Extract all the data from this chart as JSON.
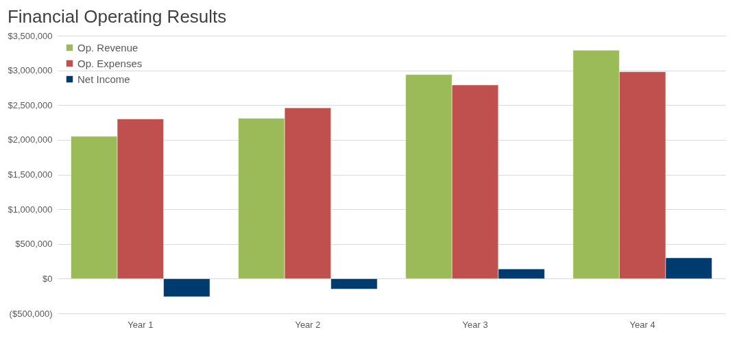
{
  "chart_data": {
    "type": "bar",
    "title": "Financial Operating Results",
    "categories": [
      "Year 1",
      "Year 2",
      "Year 3",
      "Year 4"
    ],
    "series": [
      {
        "name": "Op. Revenue",
        "color": "#9bbb59",
        "values": [
          2050000,
          2310000,
          2940000,
          3290000
        ]
      },
      {
        "name": "Op. Expenses",
        "color": "#c0504d",
        "values": [
          2300000,
          2460000,
          2790000,
          2980000
        ]
      },
      {
        "name": "Net Income",
        "color": "#003b6f",
        "values": [
          -260000,
          -150000,
          140000,
          300000
        ]
      }
    ],
    "ylim": [
      -500000,
      3500000
    ],
    "yticks": [
      {
        "value": -500000,
        "label": "($500,000)"
      },
      {
        "value": 0,
        "label": "$0"
      },
      {
        "value": 500000,
        "label": "$500,000"
      },
      {
        "value": 1000000,
        "label": "$1,000,000"
      },
      {
        "value": 1500000,
        "label": "$1,500,000"
      },
      {
        "value": 2000000,
        "label": "$2,000,000"
      },
      {
        "value": 2500000,
        "label": "$2,500,000"
      },
      {
        "value": 3000000,
        "label": "$3,000,000"
      },
      {
        "value": 3500000,
        "label": "$3,500,000"
      }
    ],
    "grid": "y",
    "legend": "top left"
  }
}
